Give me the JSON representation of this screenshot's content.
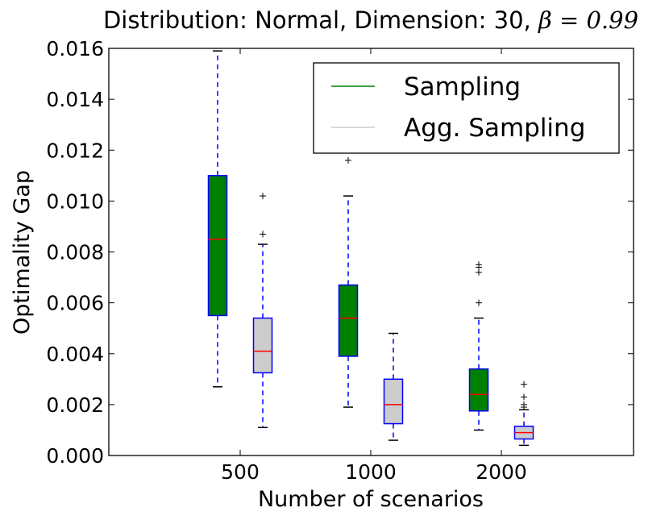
{
  "chart_data": {
    "type": "boxplot",
    "title_prefix": "Distribution: Normal, Dimension: 30, ",
    "title_beta": "β = 0.99",
    "xlabel": "Number of scenarios",
    "ylabel": "Optimality Gap",
    "ylim": [
      0.0,
      0.016
    ],
    "yticks": [
      "0.000",
      "0.002",
      "0.004",
      "0.006",
      "0.008",
      "0.010",
      "0.012",
      "0.014",
      "0.016"
    ],
    "ytick_values": [
      0.0,
      0.002,
      0.004,
      0.006,
      0.008,
      0.01,
      0.012,
      0.014,
      0.016
    ],
    "categories": [
      "500",
      "1000",
      "2000"
    ],
    "legend": [
      {
        "name": "Sampling",
        "color": "#008000"
      },
      {
        "name": "Agg. Sampling",
        "color": "#cccccc"
      }
    ],
    "series": [
      {
        "name": "Sampling",
        "color": "#008000",
        "boxes": [
          {
            "category": "500",
            "whisker_low": 0.0027,
            "q1": 0.0055,
            "median": 0.0085,
            "q3": 0.011,
            "whisker_high": 0.0159,
            "outliers": []
          },
          {
            "category": "1000",
            "whisker_low": 0.0019,
            "q1": 0.0039,
            "median": 0.0054,
            "q3": 0.0067,
            "whisker_high": 0.0102,
            "outliers": [
              0.0116
            ]
          },
          {
            "category": "2000",
            "whisker_low": 0.001,
            "q1": 0.00175,
            "median": 0.0024,
            "q3": 0.0034,
            "whisker_high": 0.0054,
            "outliers": [
              0.006,
              0.0072,
              0.0074,
              0.0075
            ]
          }
        ]
      },
      {
        "name": "Agg. Sampling",
        "color": "#cccccc",
        "boxes": [
          {
            "category": "500",
            "whisker_low": 0.0011,
            "q1": 0.00325,
            "median": 0.0041,
            "q3": 0.0054,
            "whisker_high": 0.0083,
            "outliers": [
              0.0087,
              0.0102
            ]
          },
          {
            "category": "1000",
            "whisker_low": 0.0006,
            "q1": 0.00125,
            "median": 0.002,
            "q3": 0.003,
            "whisker_high": 0.0048,
            "outliers": []
          },
          {
            "category": "2000",
            "whisker_low": 0.0004,
            "q1": 0.00065,
            "median": 0.0009,
            "q3": 0.00115,
            "whisker_high": 0.0018,
            "outliers": [
              0.0019,
              0.002,
              0.0023,
              0.0028
            ]
          }
        ]
      }
    ],
    "whisker_color": "#0000ff",
    "median_color": "#ff0000",
    "legend_position": "top-right"
  }
}
